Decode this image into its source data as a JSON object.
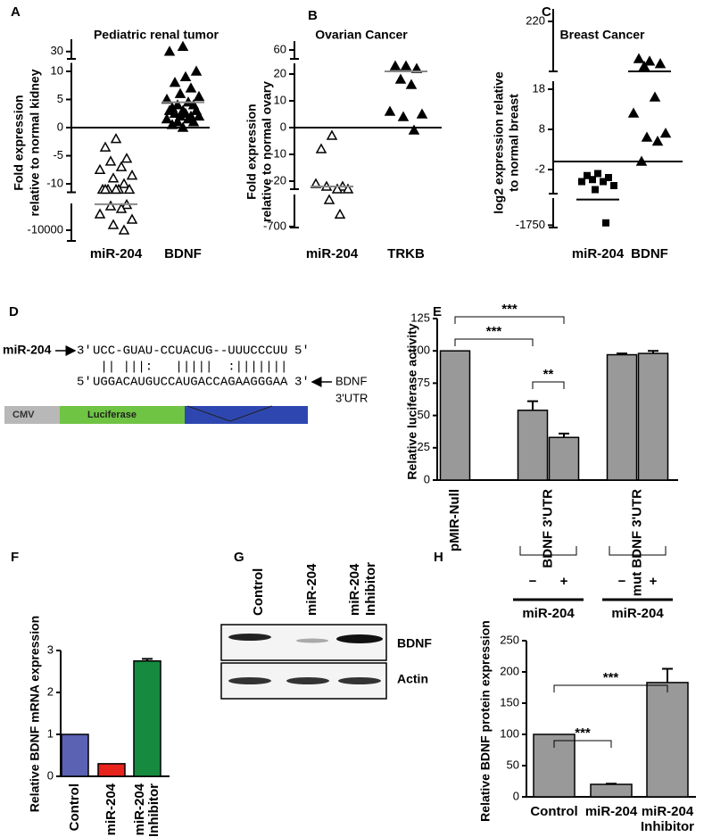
{
  "chart_data": [
    {
      "type": "dot",
      "panel": "A",
      "title": "Pediatric renal tumor",
      "ylabel": [
        "Fold expression",
        "relative to normal kidney"
      ],
      "categories": [
        "miR-204",
        "BDNF"
      ],
      "markers": [
        "open-triangle",
        "triangle"
      ],
      "color": "#000000",
      "median_color": "#888888",
      "axis_segments": [
        {
          "ylim": [
            -14000,
            -20
          ],
          "yticks": [
            -10000
          ]
        },
        {
          "ylim": [
            -11.5,
            11.5
          ],
          "yticks": [
            -10,
            -5,
            0,
            5,
            10
          ]
        },
        {
          "ylim": [
            27,
            35
          ],
          "yticks": [
            30
          ]
        }
      ],
      "points": [
        [
          -2,
          -3.5,
          -5.5,
          -6,
          -7,
          -7.5,
          -8.5,
          -9,
          -10,
          -11,
          -11,
          -11,
          -11,
          -11,
          -11,
          -500,
          -1000,
          -2000,
          -4000,
          -6000,
          -8000,
          -10000
        ],
        [
          0,
          0.5,
          1,
          1,
          1.5,
          1.5,
          2,
          2,
          2,
          2.5,
          2.5,
          3,
          3,
          3,
          3.5,
          4,
          4,
          4.5,
          5,
          5.5,
          6,
          7,
          8,
          9,
          10,
          30,
          32
        ]
      ],
      "medians": [
        -300,
        4.5
      ]
    },
    {
      "type": "dot",
      "panel": "B",
      "title": "Ovarian Cancer",
      "ylabel": [
        "Fold expression",
        "relative to normal ovary"
      ],
      "categories": [
        "miR-204",
        "TRKB"
      ],
      "markers": [
        "open-triangle",
        "triangle"
      ],
      "color": "#000000",
      "median_color": "#888888",
      "axis_segments": [
        {
          "ylim": [
            -720,
            -40
          ],
          "yticks": [
            -700
          ]
        },
        {
          "ylim": [
            -23,
            24
          ],
          "yticks": [
            -20,
            -10,
            0,
            10,
            20
          ]
        },
        {
          "ylim": [
            55,
            65
          ],
          "yticks": [
            60
          ]
        }
      ],
      "points": [
        [
          -3,
          -8,
          -22,
          -22,
          -23,
          -21,
          -23,
          -150,
          -450
        ],
        [
          23,
          23,
          22,
          18,
          16,
          6,
          5,
          4,
          -1
        ]
      ],
      "medians": [
        -22,
        21
      ]
    },
    {
      "type": "dot",
      "panel": "C",
      "title": "Breast Cancer",
      "ylabel": [
        "log2 expression relative",
        "to normal breast"
      ],
      "categories": [
        "miR-204",
        "BDNF"
      ],
      "markers": [
        "square",
        "triangle"
      ],
      "color": "#000000",
      "median_color": "#000000",
      "axis_segments": [
        {
          "ylim": [
            -1900,
            -10
          ],
          "yticks": [
            -1750
          ]
        },
        {
          "ylim": [
            -8,
            20
          ],
          "yticks": [
            -2,
            8,
            18
          ]
        },
        {
          "ylim": [
            200,
            225
          ],
          "yticks": [
            220
          ]
        }
      ],
      "points": [
        [
          -3,
          -3.5,
          -4,
          -4.5,
          -5,
          -5,
          -6,
          -7,
          -1600
        ],
        [
          204,
          205,
          203,
          202,
          16,
          12,
          7,
          6,
          5,
          0
        ]
      ],
      "medians": [
        -100,
        200
      ]
    },
    {
      "type": "bar",
      "panel": "E",
      "ylabel": "Relative luciferase activity",
      "categories": [
        "pMIR-Null",
        "−",
        "+",
        "−",
        "+"
      ],
      "groups": [
        {
          "label": "BDNF 3'UTR",
          "treatment": "miR-204"
        },
        {
          "label": "mut BDNF 3'UTR",
          "treatment": "miR-204"
        }
      ],
      "values": [
        100,
        54,
        33,
        97,
        98
      ],
      "errors": [
        null,
        7,
        3,
        1,
        2
      ],
      "color": "#999999",
      "ylim": [
        0,
        125
      ],
      "yticks": [
        0,
        25,
        50,
        75,
        100,
        125
      ],
      "annotations": [
        "***",
        "***",
        "**"
      ]
    },
    {
      "type": "bar",
      "panel": "F",
      "ylabel": "Relative BDNF mRNA expression",
      "categories": [
        "Control",
        "miR-204",
        [
          "miR-204",
          "Inhibitor"
        ]
      ],
      "values": [
        1,
        0.3,
        2.75
      ],
      "errors": [
        null,
        null,
        0.05
      ],
      "colors": [
        "#5b62b3",
        "#e8231c",
        "#168a3f"
      ],
      "ylim": [
        0,
        3
      ],
      "yticks": [
        0,
        1,
        2,
        3
      ]
    },
    {
      "type": "bar",
      "panel": "H",
      "ylabel": "Relative BDNF protein expression",
      "categories": [
        "Control",
        "miR-204",
        [
          "miR-204",
          "Inhibitor"
        ]
      ],
      "values": [
        100,
        20,
        183
      ],
      "errors": [
        null,
        1,
        22
      ],
      "color": "#999999",
      "ylim": [
        0,
        250
      ],
      "yticks": [
        0,
        50,
        100,
        150,
        200,
        250
      ],
      "annotations": [
        "***",
        "***"
      ]
    }
  ],
  "diagram": {
    "panel": "D",
    "mirna": {
      "name": "miR-204",
      "end3": "3'",
      "sequence": "UCC-GUAU-CCUACUG--UUUCCCUU",
      "end5": "5'"
    },
    "pairing": " || |||:   |||||  :|||||||",
    "target": {
      "end5": "5'",
      "sequence": "UGGACAUGUCCAUGACCAGAAGGGAA",
      "end3": "3'",
      "name": [
        "BDNF",
        "3'UTR"
      ]
    },
    "vector": [
      "CMV",
      "Luciferase"
    ]
  },
  "blot": {
    "panel": "G",
    "lanes": [
      "Control",
      "miR-204",
      [
        "miR-204",
        "Inhibitor"
      ]
    ],
    "bands": [
      "BDNF",
      "Actin"
    ]
  }
}
